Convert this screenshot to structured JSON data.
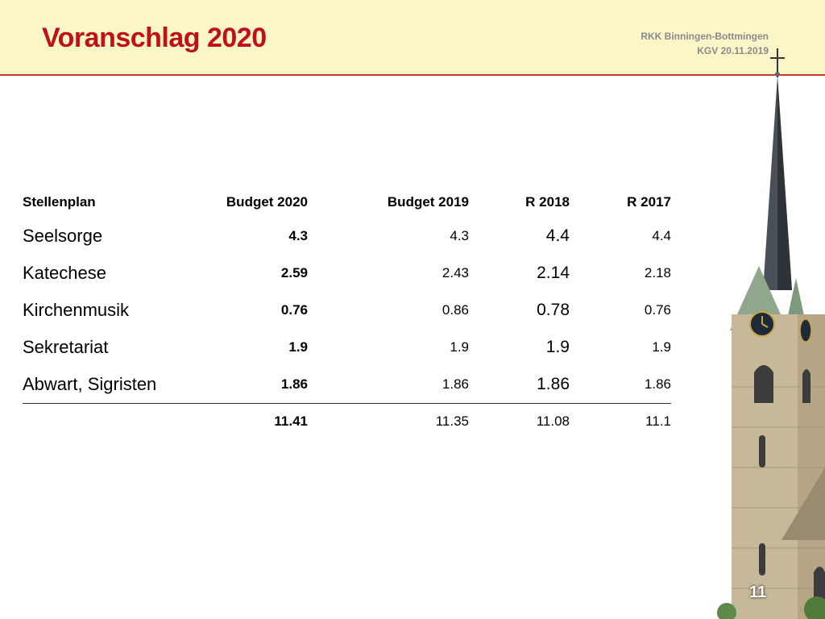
{
  "slide": {
    "title": "Voranschlag 2020",
    "org_line1": "RKK Binningen-Bottmingen",
    "org_line2": "KGV 20.11.2019",
    "page_number": "11"
  },
  "table": {
    "headers": [
      "Stellenplan",
      "Budget 2020",
      "Budget 2019",
      "R 2018",
      "R 2017"
    ],
    "rows": [
      [
        "Seelsorge",
        "4.3",
        "4.3",
        "4.4",
        "4.4"
      ],
      [
        "Katechese",
        "2.59",
        "2.43",
        "2.14",
        "2.18"
      ],
      [
        "Kirchenmusik",
        "0.76",
        "0.86",
        "0.78",
        "0.76"
      ],
      [
        "Sekretariat",
        "1.9",
        "1.9",
        "1.9",
        "1.9"
      ],
      [
        "Abwart, Sigristen",
        "1.86",
        "1.86",
        "1.86",
        "1.86"
      ]
    ],
    "totals": [
      "",
      "11.41",
      "11.35",
      "11.08",
      "11.1"
    ]
  },
  "colors": {
    "title": "#c0101a",
    "header_band": "#fbf6c8",
    "rule": "#c0392b"
  },
  "image": "church-tower"
}
